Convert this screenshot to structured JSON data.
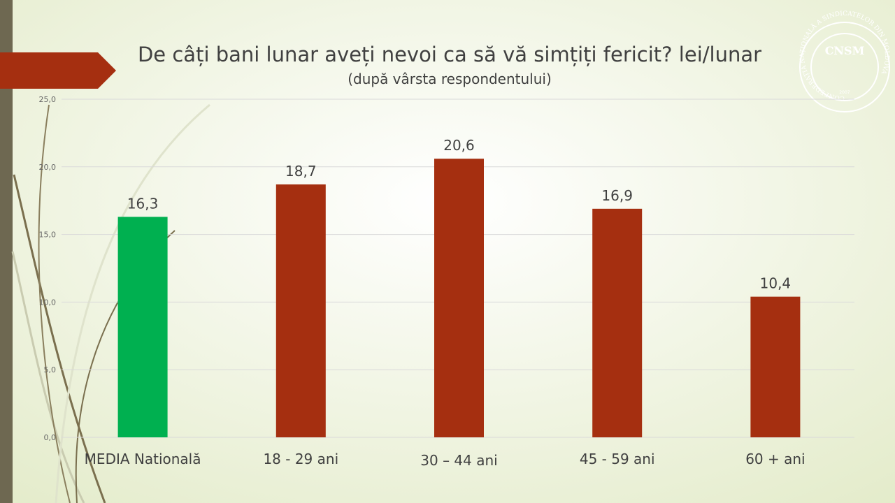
{
  "chart_data": {
    "type": "bar",
    "title": "De câți bani lunar aveți nevoi ca să vă simțiți fericit? lei/lunar",
    "subtitle": "(după vârsta respondentului)",
    "categories": [
      "MEDIA Natională",
      "18 - 29 ani",
      "30 – 44 ani",
      "45 - 59 ani",
      "60 + ani"
    ],
    "values": [
      16.3,
      18.7,
      20.6,
      16.9,
      10.4
    ],
    "value_labels": [
      "16,3",
      "18,7",
      "20,6",
      "16,9",
      "10,4"
    ],
    "colors": [
      "#00b050",
      "#a52f10",
      "#a52f10",
      "#a52f10",
      "#a52f10"
    ],
    "ylim": [
      0,
      25
    ],
    "yticks": [
      {
        "value": 0,
        "label": "0,0"
      },
      {
        "value": 5,
        "label": "5,0"
      },
      {
        "value": 10,
        "label": "10,0"
      },
      {
        "value": 15,
        "label": "15,0"
      },
      {
        "value": 20,
        "label": "20,0"
      },
      {
        "value": 25,
        "label": "25,0"
      }
    ],
    "grid": true
  },
  "logo": {
    "abbr": "CNSM",
    "ring": "CONFEDERAȚIA NAȚIONALĂ A SINDICATELOR DIN MOLDOVA",
    "year": "2007"
  }
}
